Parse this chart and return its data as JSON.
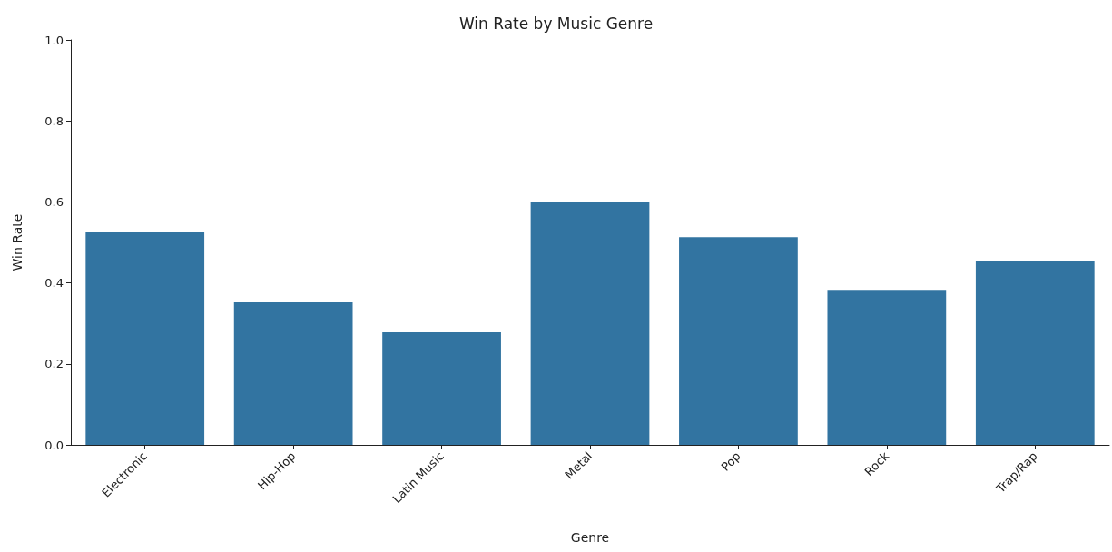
{
  "chart_data": {
    "type": "bar",
    "title": "Win Rate by Music Genre",
    "xlabel": "Genre",
    "ylabel": "Win Rate",
    "categories": [
      "Electronic",
      "Hip-Hop",
      "Latin Music",
      "Metal",
      "Pop",
      "Rock",
      "Trap/Rap"
    ],
    "values": [
      0.525,
      0.352,
      0.278,
      0.6,
      0.513,
      0.383,
      0.455
    ],
    "color": "#3274a1",
    "ylim": [
      0,
      1
    ],
    "yticks": [
      {
        "value": 0,
        "label": "0.0"
      },
      {
        "value": 0.2,
        "label": "0.2"
      },
      {
        "value": 0.4,
        "label": "0.4"
      },
      {
        "value": 0.6,
        "label": "0.6"
      },
      {
        "value": 0.8,
        "label": "0.8"
      },
      {
        "value": 1,
        "label": "1.0"
      }
    ],
    "grid": false
  }
}
